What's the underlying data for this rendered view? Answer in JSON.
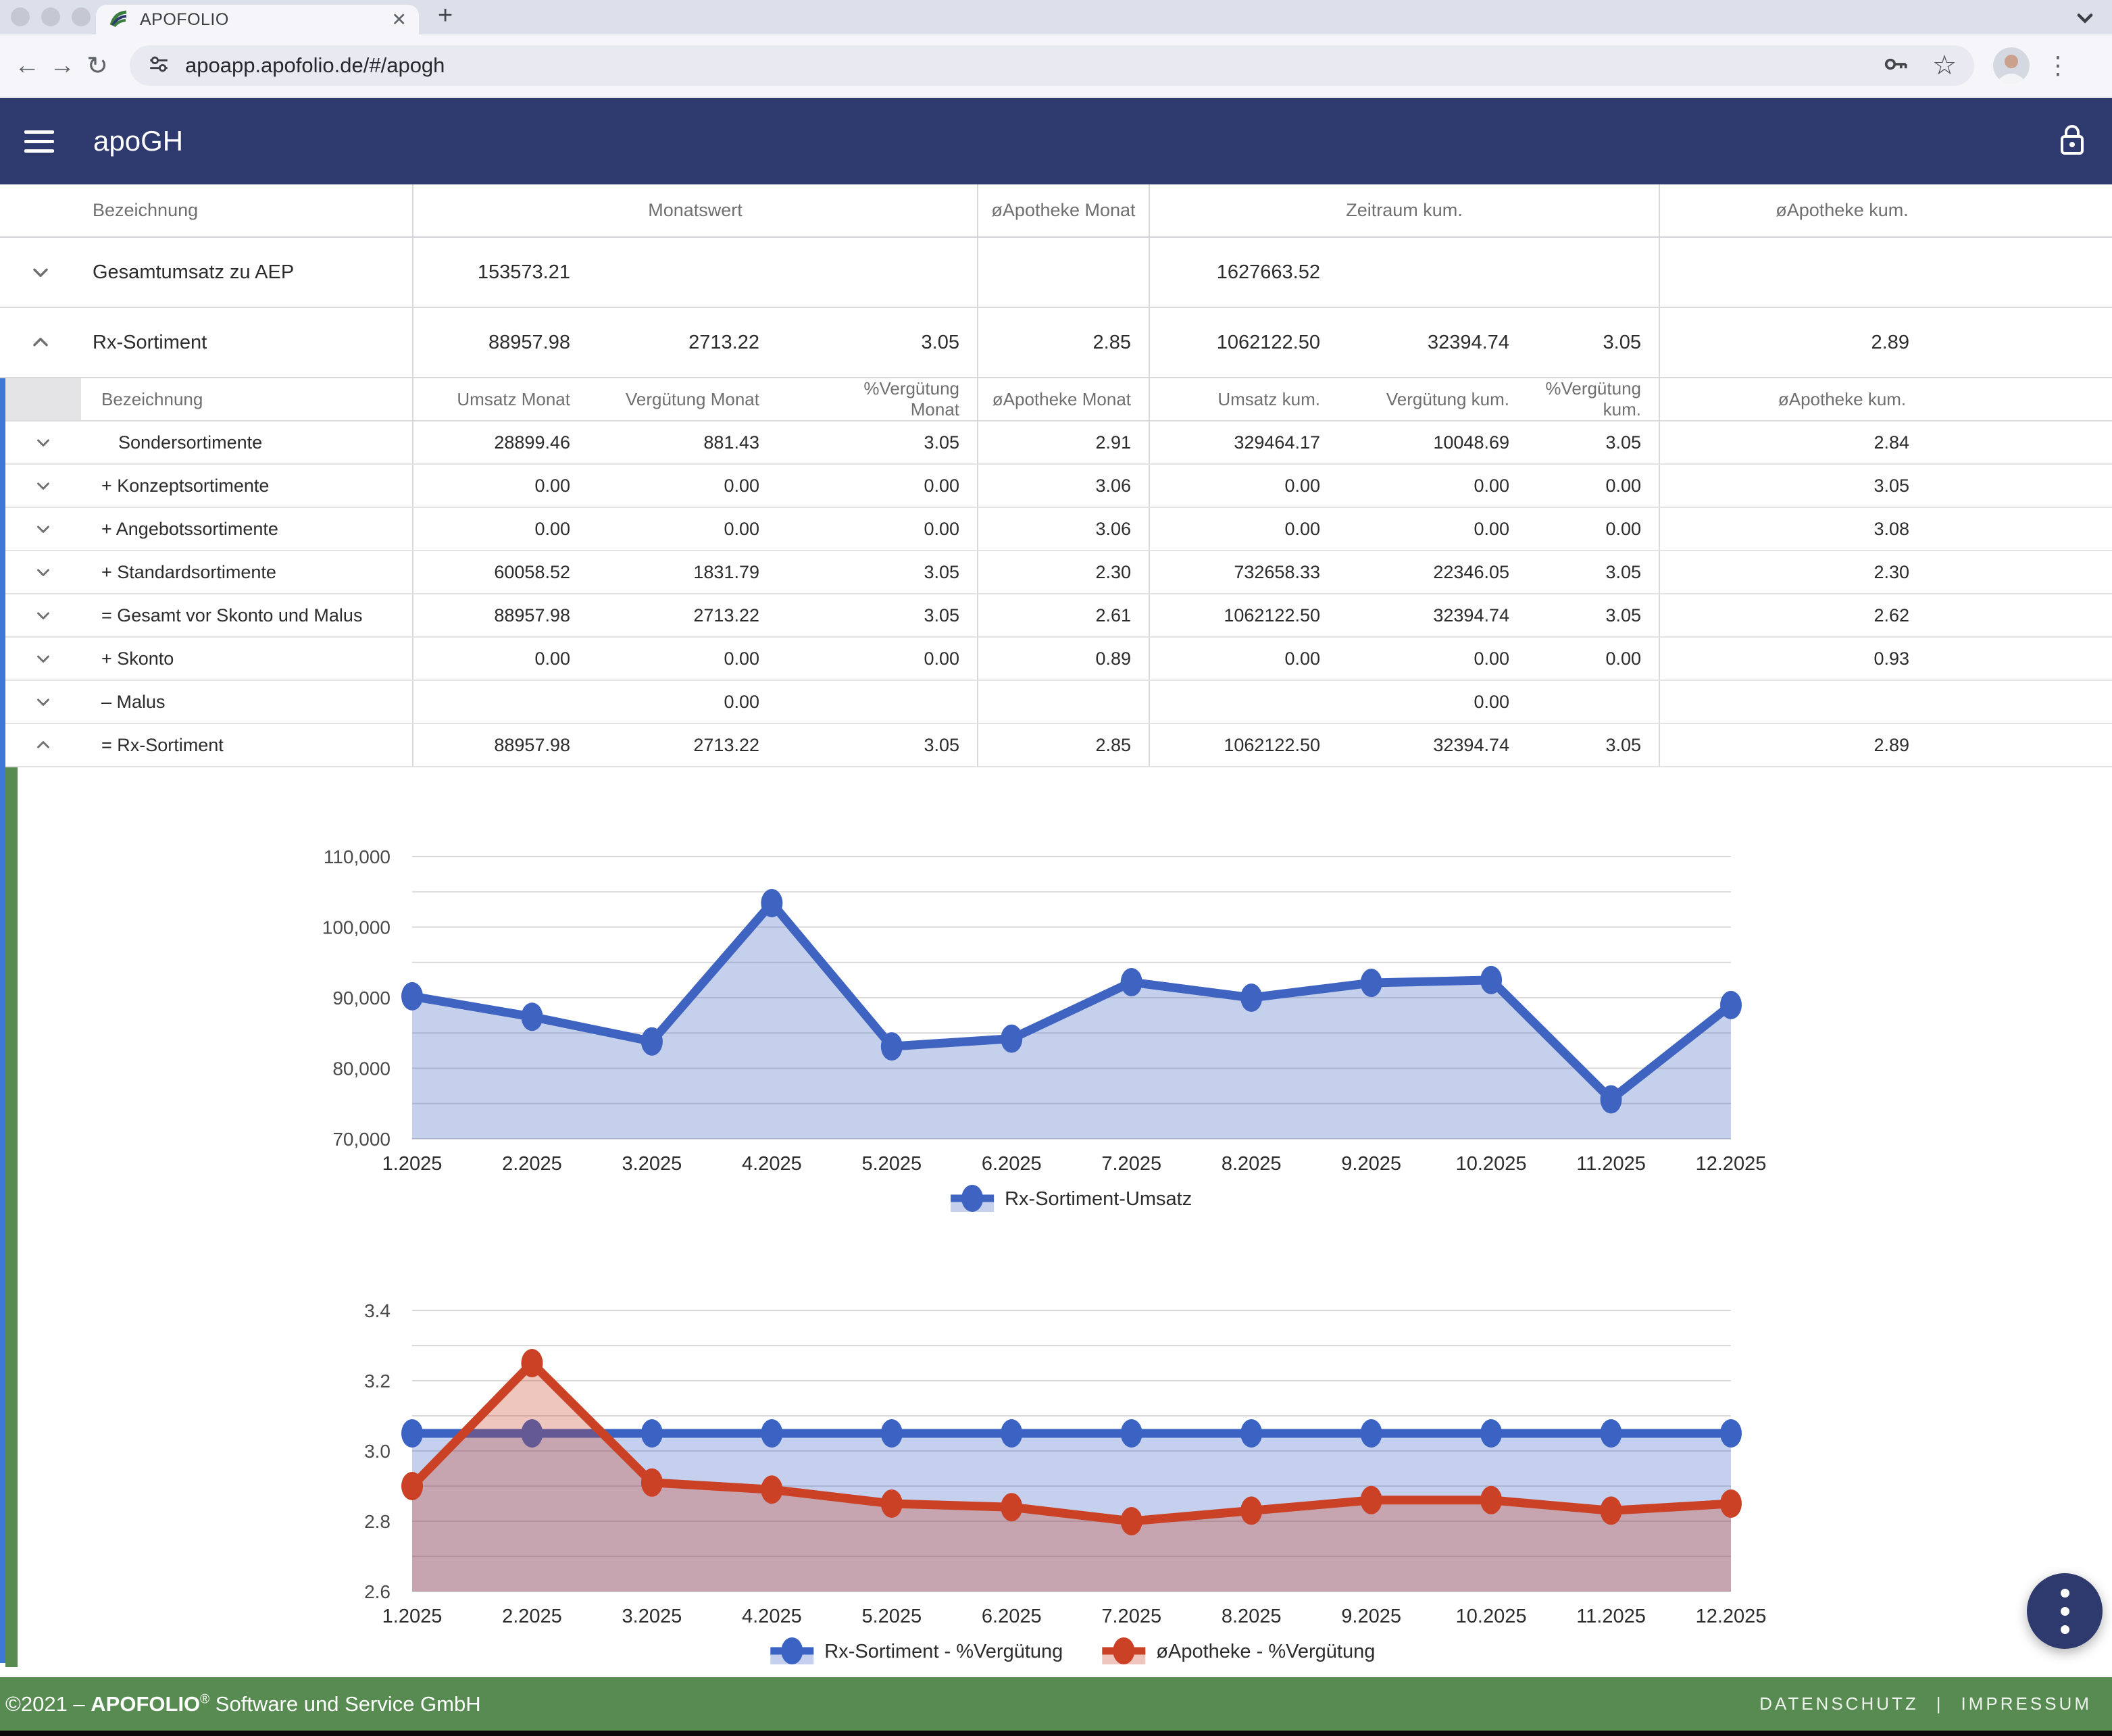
{
  "browser": {
    "tab_title": "APOFOLIO",
    "url": "apoapp.apofolio.de/#/apogh",
    "glyphs": {
      "back": "←",
      "forward": "→",
      "reload": "↻",
      "close": "✕",
      "new_tab": "+",
      "kebab": "⋮",
      "star": "☆"
    }
  },
  "app_header": {
    "title": "apoGH"
  },
  "main_table": {
    "headers": [
      "Bezeichnung",
      "Monatswert",
      "øApotheke Monat",
      "Zeitraum kum.",
      "øApotheke kum."
    ],
    "rows": [
      {
        "expander": "down",
        "label": "Gesamtumsatz zu AEP",
        "cells": [
          "153573.21",
          "",
          "",
          "",
          "1627663.52",
          "",
          "",
          ""
        ]
      },
      {
        "expander": "up",
        "label": "Rx-Sortiment",
        "cells": [
          "88957.98",
          "2713.22",
          "3.05",
          "2.85",
          "1062122.50",
          "32394.74",
          "3.05",
          "2.89"
        ]
      }
    ]
  },
  "sub_table": {
    "headers": [
      "Bezeichnung",
      "Umsatz Monat",
      "Vergütung Monat",
      "%Vergütung Monat",
      "øApotheke Monat",
      "Umsatz kum.",
      "Vergütung kum.",
      "%Vergütung kum.",
      "øApotheke kum."
    ],
    "rows": [
      {
        "expander": "down",
        "label": "Sondersortimente",
        "indent": true,
        "cells": [
          "28899.46",
          "881.43",
          "3.05",
          "2.91",
          "329464.17",
          "10048.69",
          "3.05",
          "2.84"
        ]
      },
      {
        "expander": "down",
        "label": "+ Konzeptsortimente",
        "cells": [
          "0.00",
          "0.00",
          "0.00",
          "3.06",
          "0.00",
          "0.00",
          "0.00",
          "3.05"
        ]
      },
      {
        "expander": "down",
        "label": "+ Angebotssortimente",
        "cells": [
          "0.00",
          "0.00",
          "0.00",
          "3.06",
          "0.00",
          "0.00",
          "0.00",
          "3.08"
        ]
      },
      {
        "expander": "down",
        "label": "+ Standardsortimente",
        "cells": [
          "60058.52",
          "1831.79",
          "3.05",
          "2.30",
          "732658.33",
          "22346.05",
          "3.05",
          "2.30"
        ]
      },
      {
        "expander": "down",
        "label": "= Gesamt vor Skonto und Malus",
        "cells": [
          "88957.98",
          "2713.22",
          "3.05",
          "2.61",
          "1062122.50",
          "32394.74",
          "3.05",
          "2.62"
        ]
      },
      {
        "expander": "down",
        "label": "+ Skonto",
        "cells": [
          "0.00",
          "0.00",
          "0.00",
          "0.89",
          "0.00",
          "0.00",
          "0.00",
          "0.93"
        ]
      },
      {
        "expander": "down",
        "label": "– Malus",
        "cells": [
          "",
          "0.00",
          "",
          "",
          "",
          "0.00",
          "",
          ""
        ]
      },
      {
        "expander": "up",
        "label": "= Rx-Sortiment",
        "cells": [
          "88957.98",
          "2713.22",
          "3.05",
          "2.85",
          "1062122.50",
          "32394.74",
          "3.05",
          "2.89"
        ]
      }
    ]
  },
  "chart_data": [
    {
      "type": "area",
      "x": [
        "1.2025",
        "2.2025",
        "3.2025",
        "4.2025",
        "5.2025",
        "6.2025",
        "7.2025",
        "8.2025",
        "9.2025",
        "10.2025",
        "11.2025",
        "12.2025"
      ],
      "series": [
        {
          "name": "Rx-Sortiment-Umsatz",
          "color": "#3e63c0",
          "values": [
            90200,
            87300,
            83800,
            103400,
            83100,
            84200,
            92200,
            90000,
            92100,
            92500,
            75600,
            88958
          ]
        }
      ],
      "ylim": [
        70000,
        110000
      ],
      "ytick_step": 5000,
      "ytick_labels": [
        "70,000",
        "80,000",
        "90,000",
        "100,000",
        "110,000"
      ],
      "grid": true,
      "legend_position": "bottom"
    },
    {
      "type": "area",
      "x": [
        "1.2025",
        "2.2025",
        "3.2025",
        "4.2025",
        "5.2025",
        "6.2025",
        "7.2025",
        "8.2025",
        "9.2025",
        "10.2025",
        "11.2025",
        "12.2025"
      ],
      "series": [
        {
          "name": "Rx-Sortiment - %Vergütung",
          "color": "#3a63c4",
          "values": [
            3.05,
            3.05,
            3.05,
            3.05,
            3.05,
            3.05,
            3.05,
            3.05,
            3.05,
            3.05,
            3.05,
            3.05
          ]
        },
        {
          "name": "øApotheke - %Vergütung",
          "color": "#cb4125",
          "values": [
            2.9,
            3.25,
            2.91,
            2.89,
            2.85,
            2.84,
            2.8,
            2.83,
            2.86,
            2.86,
            2.83,
            2.85
          ]
        }
      ],
      "ylim": [
        2.6,
        3.4
      ],
      "ytick_step": 0.1,
      "ytick_labels": [
        "2.6",
        "2.8",
        "3.0",
        "3.2",
        "3.4"
      ],
      "grid": true,
      "legend_position": "bottom"
    }
  ],
  "footer": {
    "copyright_prefix": "©2021 – ",
    "brand": "APOFOLIO",
    "registered": "®",
    "company": " Software und Service GmbH",
    "separator": "|",
    "links": [
      {
        "label": "DATENSCHUTZ"
      },
      {
        "label": "IMPRESSUM"
      }
    ]
  }
}
